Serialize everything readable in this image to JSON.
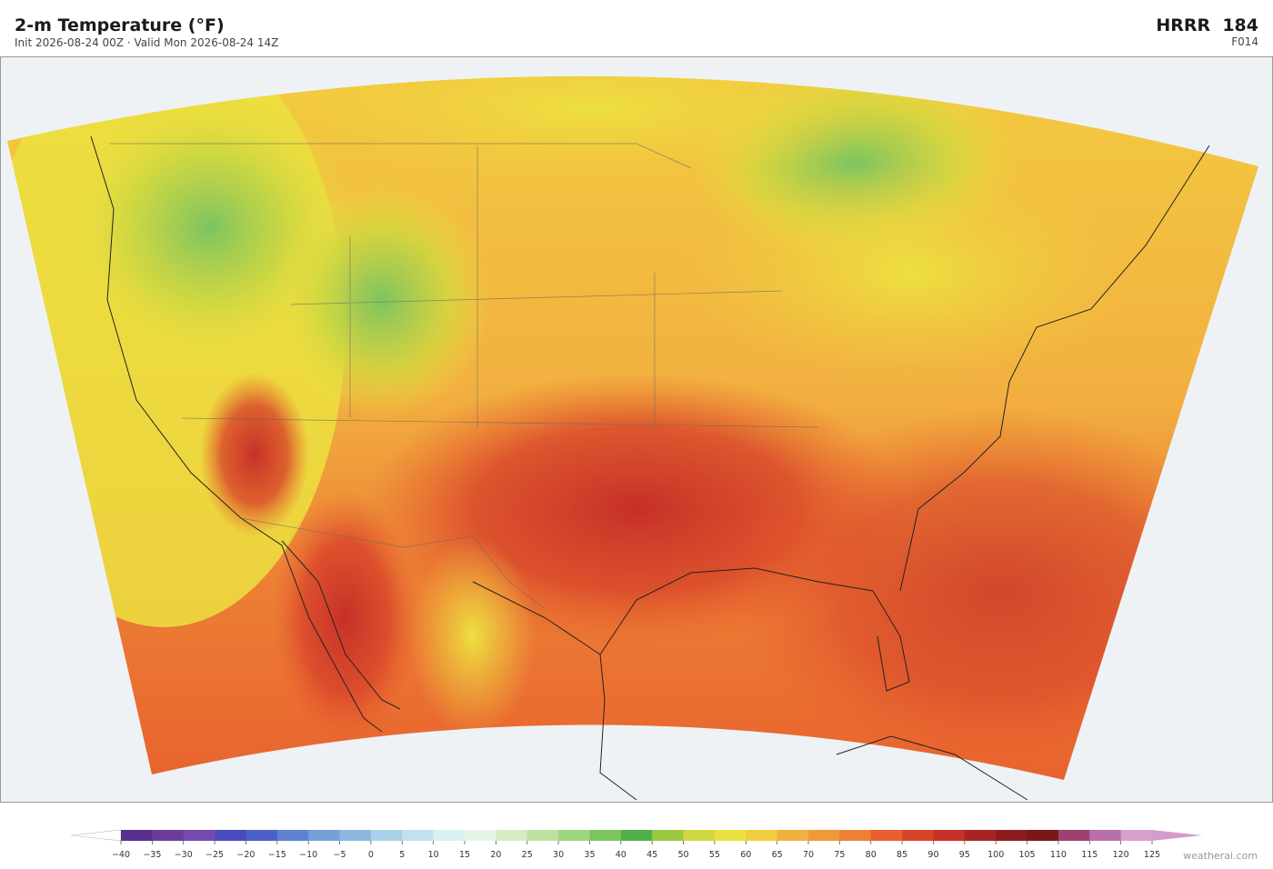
{
  "header": {
    "title": "2-m Temperature  (°F)",
    "subtitle": "Init 2026-08-24 00Z  ·  Valid Mon 2026-08-24 14Z",
    "model": "HRRR  184",
    "forecast_hour": "F014"
  },
  "colorbar": {
    "ticks": [
      {
        "value": -40,
        "label": "−40"
      },
      {
        "value": -35,
        "label": "−35"
      },
      {
        "value": -30,
        "label": "−30"
      },
      {
        "value": -25,
        "label": "−25"
      },
      {
        "value": -20,
        "label": "−20"
      },
      {
        "value": -15,
        "label": "−15"
      },
      {
        "value": -10,
        "label": "−10"
      },
      {
        "value": -5,
        "label": "−5"
      },
      0,
      5,
      10,
      15,
      20,
      25,
      30,
      35,
      40,
      45,
      50,
      55,
      60,
      65,
      70,
      75,
      80,
      85,
      90,
      95,
      100,
      105,
      110,
      115,
      120,
      125
    ],
    "colors": [
      "#5a2d91",
      "#6a3d9a",
      "#7649b0",
      "#4a49c0",
      "#4a60c8",
      "#5c82d0",
      "#75a0d8",
      "#8cb8e0",
      "#a8d0e8",
      "#c0e2ee",
      "#d8f0f0",
      "#e6f6e6",
      "#d6ecc2",
      "#bde2a0",
      "#9ed680",
      "#7cc460",
      "#4fb04a",
      "#9ac840",
      "#cfd840",
      "#ece040",
      "#f2cc40",
      "#f2b040",
      "#ef9a3a",
      "#ec8035",
      "#e8602e",
      "#d8442a",
      "#c53028",
      "#a82424",
      "#8c1c1c",
      "#7a1818",
      "#9e4070",
      "#b870a8",
      "#d8a0cc"
    ],
    "under": "#ffffff",
    "over": "#d49ccc"
  },
  "footer": {
    "credit": "weatherai.com"
  }
}
